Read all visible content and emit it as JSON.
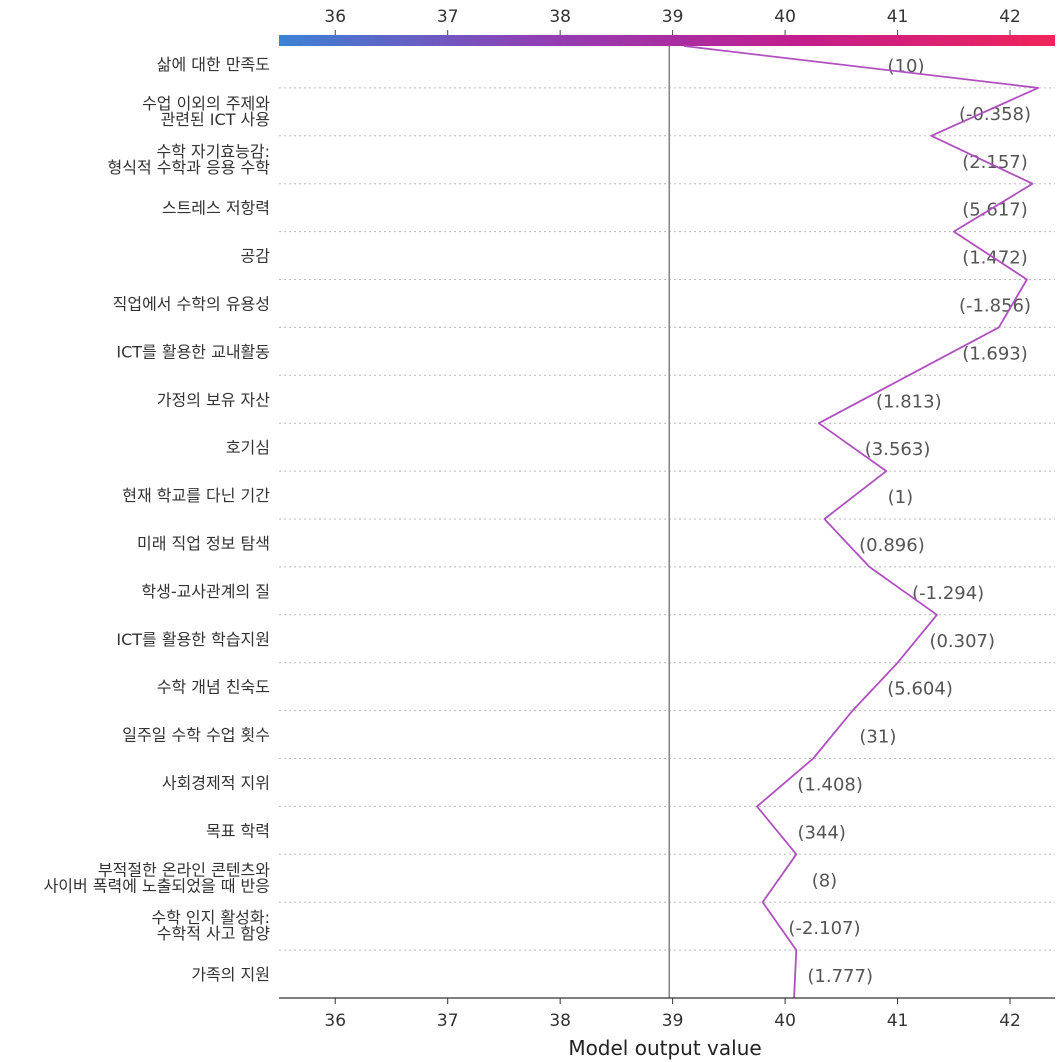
{
  "chart_data": {
    "type": "line",
    "chart_kind": "SHAP decision plot",
    "xlabel": "Model output value",
    "xlim": [
      35.5,
      42.4
    ],
    "xticks": [
      36,
      37,
      38,
      39,
      40,
      41,
      42
    ],
    "base_value": 38.97,
    "colorbar": {
      "gradient": [
        "#3b82d4",
        "#8f3fb4",
        "#c21e8e",
        "#f0245a"
      ]
    },
    "line_color": "#b050c0",
    "features": [
      {
        "label": "삶에 대한 만족도",
        "value_label": "(10)",
        "x": 40.2
      },
      {
        "label": "수업 이외의 주제와\n관련된 ICT 사용",
        "value_label": "(-0.358)",
        "x": 42.25
      },
      {
        "label": "수학 자기효능감:\n형식적 수학과 응용 수학",
        "value_label": "(2.157)",
        "x": 41.3
      },
      {
        "label": "스트레스 저항력",
        "value_label": "(5.617)",
        "x": 42.2
      },
      {
        "label": "공감",
        "value_label": "(1.472)",
        "x": 41.5
      },
      {
        "label": "직업에서 수학의 유용성",
        "value_label": "(-1.856)",
        "x": 42.15
      },
      {
        "label": "ICT를 활용한 교내활동",
        "value_label": "(1.693)",
        "x": 41.9
      },
      {
        "label": "가정의 보유 자산",
        "value_label": "(1.813)",
        "x": 41.1
      },
      {
        "label": "호기심",
        "value_label": "(3.563)",
        "x": 40.3
      },
      {
        "label": "현재 학교를 다닌 기간",
        "value_label": "(1)",
        "x": 40.9
      },
      {
        "label": "미래 직업 정보 탐색",
        "value_label": "(0.896)",
        "x": 40.35
      },
      {
        "label": "학생-교사관계의 질",
        "value_label": "(-1.294)",
        "x": 40.75
      },
      {
        "label": "ICT를 활용한 학습지원",
        "value_label": "(0.307)",
        "x": 41.35
      },
      {
        "label": "수학 개념 친숙도",
        "value_label": "(5.604)",
        "x": 41.0
      },
      {
        "label": "일주일 수학 수업 횟수",
        "value_label": "(31)",
        "x": 40.6
      },
      {
        "label": "사회경제적 지위",
        "value_label": "(1.408)",
        "x": 40.25
      },
      {
        "label": "목표 학력",
        "value_label": "(344)",
        "x": 39.75
      },
      {
        "label": "부적절한 온라인 콘텐츠와\n사이버 폭력에 노출되었을 때 반응",
        "value_label": "(8)",
        "x": 40.1
      },
      {
        "label": "수학 인지 활성화:\n수학적 사고 함양",
        "value_label": "(-2.107)",
        "x": 39.8
      },
      {
        "label": "가족의 지원",
        "value_label": "(1.777)",
        "x": 40.1
      }
    ]
  }
}
